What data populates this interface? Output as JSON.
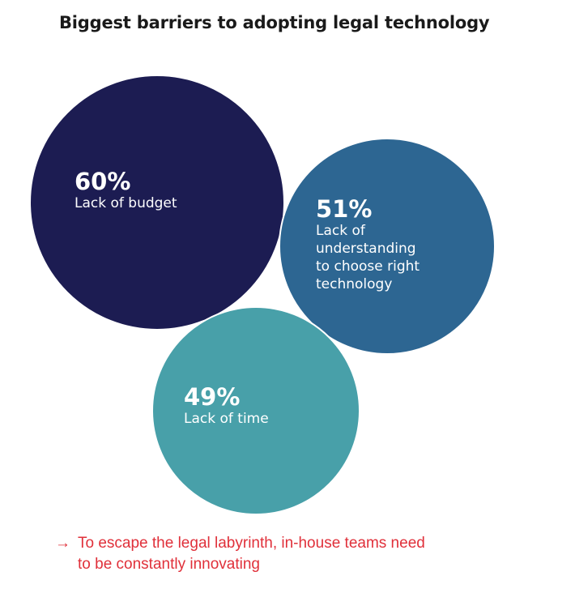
{
  "chart_data": {
    "type": "bubble",
    "title": "Biggest barriers to adopting legal technology",
    "categories": [
      "Lack of budget",
      "Lack of understanding to choose right technology",
      "Lack of time"
    ],
    "values": [
      60,
      51,
      49
    ],
    "labels": [
      "60%",
      "51%",
      "49%"
    ],
    "label_lines": [
      "Lack of budget",
      "Lack of\nunderstanding\nto choose right\ntechnology",
      "Lack of time"
    ],
    "colors": [
      "#1c1c52",
      "#2d6692",
      "#48a0a9"
    ]
  },
  "footnote": {
    "arrow": "→",
    "text": "To escape the legal labyrinth, in-house teams need\nto be constantly innovating"
  }
}
